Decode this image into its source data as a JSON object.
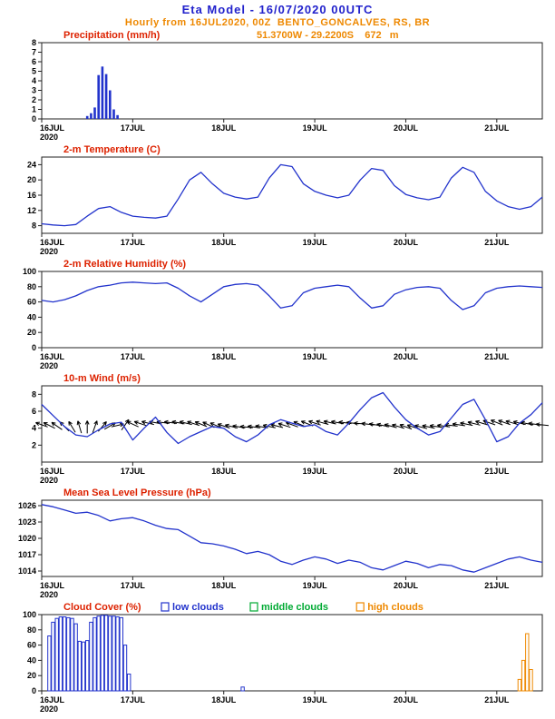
{
  "header": {
    "title": "Eta Model - 16/07/2020 00UTC",
    "subtitle": "Hourly from 16JUL2020, 00Z  BENTO_GONCALVES, RS, BR",
    "coords": "51.3700W - 29.2200S    672   m"
  },
  "colors": {
    "blue": "#2222cc",
    "orange": "#ee8800",
    "red": "#dd2200",
    "green": "#00aa33",
    "line_blue": "#2233cc",
    "black": "#000000"
  },
  "chart_data": {
    "type": "meteogram",
    "x_axis": {
      "tick_labels": [
        "16JUL",
        "17JUL",
        "18JUL",
        "19JUL",
        "20JUL",
        "21JUL"
      ],
      "tick_hours": [
        0,
        24,
        48,
        72,
        96,
        120
      ],
      "year_label": "2020",
      "hours_total": 132
    },
    "panels": [
      {
        "id": "precipitation",
        "type": "bar",
        "title": "Precipitation (mm/h)",
        "ylim": [
          0,
          8
        ],
        "yticks": [
          0,
          1,
          2,
          3,
          4,
          5,
          6,
          7,
          8
        ],
        "bar_color": "#2233cc",
        "bars": [
          [
            12,
            0.3
          ],
          [
            13,
            0.6
          ],
          [
            14,
            1.2
          ],
          [
            15,
            4.6
          ],
          [
            16,
            5.5
          ],
          [
            17,
            4.7
          ],
          [
            18,
            3.0
          ],
          [
            19,
            1.0
          ],
          [
            20,
            0.4
          ]
        ]
      },
      {
        "id": "temperature-2m",
        "type": "line",
        "title": "2-m Temperature (C)",
        "ylim": [
          6,
          26
        ],
        "yticks": [
          8,
          12,
          16,
          20,
          24
        ],
        "line_color": "#2233cc",
        "step_hours": 3,
        "values": [
          8.5,
          8.2,
          8.0,
          8.3,
          10.5,
          12.5,
          13.0,
          11.5,
          10.5,
          10.2,
          10.0,
          10.5,
          15.0,
          20.0,
          22.0,
          19.0,
          16.5,
          15.5,
          15.0,
          15.5,
          20.5,
          24.0,
          23.5,
          19.0,
          17.0,
          16.0,
          15.3,
          16.0,
          20.0,
          23.0,
          22.5,
          18.5,
          16.2,
          15.3,
          14.8,
          15.5,
          20.5,
          23.3,
          22.0,
          17.0,
          14.5,
          13.0,
          12.3,
          13.0,
          15.5
        ]
      },
      {
        "id": "relative-humidity-2m",
        "type": "line",
        "title": "2-m Relative Humidity (%)",
        "ylim": [
          0,
          100
        ],
        "yticks": [
          0,
          20,
          40,
          60,
          80,
          100
        ],
        "line_color": "#2233cc",
        "step_hours": 3,
        "values": [
          62,
          60,
          63,
          68,
          75,
          80,
          82,
          85,
          86,
          85,
          84,
          85,
          78,
          68,
          60,
          70,
          80,
          83,
          84,
          82,
          68,
          52,
          55,
          72,
          78,
          80,
          82,
          80,
          65,
          52,
          55,
          70,
          76,
          79,
          80,
          78,
          62,
          50,
          55,
          72,
          78,
          80,
          81,
          80,
          79
        ]
      },
      {
        "id": "wind-10m",
        "type": "wind",
        "title": "10-m Wind (m/s)",
        "ylim": [
          0,
          9
        ],
        "yticks": [
          2,
          4,
          6,
          8
        ],
        "line_color": "#2233cc",
        "arrow_color": "#000000",
        "arrow_y_value": 4.4,
        "step_hours": 3,
        "values": [
          6.8,
          5.5,
          4.2,
          3.2,
          3.0,
          3.8,
          4.5,
          4.7,
          2.6,
          4.0,
          5.3,
          3.5,
          2.2,
          3.0,
          3.6,
          4.2,
          4.0,
          3.0,
          2.4,
          3.2,
          4.4,
          5.0,
          4.6,
          4.2,
          4.4,
          3.6,
          3.2,
          4.6,
          6.2,
          7.6,
          8.2,
          6.5,
          5.0,
          4.0,
          3.2,
          3.6,
          5.2,
          6.8,
          7.4,
          5.0,
          2.4,
          3.0,
          4.6,
          5.6,
          7.0
        ],
        "arrow_angles_deg": [
          200,
          210,
          225,
          245,
          270,
          300,
          330,
          355,
          205,
          195,
          190,
          186,
          190,
          196,
          202,
          206,
          198,
          192,
          186,
          188,
          192,
          196,
          200,
          204,
          198,
          194,
          190,
          186,
          184,
          188,
          192,
          196,
          200,
          196,
          192,
          188,
          186,
          190,
          194,
          198,
          202,
          198,
          194,
          190,
          186
        ]
      },
      {
        "id": "mslp",
        "type": "line",
        "title": "Mean Sea Level Pressure (hPa)",
        "ylim": [
          1013,
          1027
        ],
        "yticks": [
          1014,
          1017,
          1020,
          1023,
          1026
        ],
        "line_color": "#2233cc",
        "step_hours": 3,
        "values": [
          1026.2,
          1025.8,
          1025.2,
          1024.6,
          1024.8,
          1024.2,
          1023.2,
          1023.6,
          1023.8,
          1023.2,
          1022.4,
          1021.8,
          1021.6,
          1020.4,
          1019.2,
          1019.0,
          1018.6,
          1018.0,
          1017.2,
          1017.6,
          1017.0,
          1015.8,
          1015.2,
          1016.0,
          1016.6,
          1016.2,
          1015.4,
          1016.0,
          1015.6,
          1014.6,
          1014.2,
          1015.0,
          1015.8,
          1015.4,
          1014.6,
          1015.2,
          1015.0,
          1014.2,
          1013.8,
          1014.6,
          1015.4,
          1016.2,
          1016.6,
          1016.0,
          1015.6
        ]
      },
      {
        "id": "cloud-cover",
        "type": "cloudbar",
        "title": "Cloud Cover (%)",
        "ylim": [
          0,
          100
        ],
        "yticks": [
          0,
          20,
          40,
          60,
          80,
          100
        ],
        "legend": [
          {
            "label": "low clouds",
            "color": "#2233cc"
          },
          {
            "label": "middle clouds",
            "color": "#00aa33"
          },
          {
            "label": "high clouds",
            "color": "#ee8800"
          }
        ],
        "series": [
          {
            "name": "low clouds",
            "color": "#2233cc",
            "bars": [
              [
                2,
                72
              ],
              [
                3,
                90
              ],
              [
                4,
                95
              ],
              [
                5,
                97
              ],
              [
                6,
                97
              ],
              [
                7,
                96
              ],
              [
                8,
                95
              ],
              [
                9,
                88
              ],
              [
                10,
                65
              ],
              [
                11,
                64
              ],
              [
                12,
                66
              ],
              [
                13,
                90
              ],
              [
                14,
                96
              ],
              [
                15,
                98
              ],
              [
                16,
                99
              ],
              [
                17,
                99
              ],
              [
                18,
                98
              ],
              [
                19,
                98
              ],
              [
                20,
                97
              ],
              [
                21,
                96
              ],
              [
                22,
                60
              ],
              [
                23,
                22
              ],
              [
                53,
                5
              ]
            ]
          },
          {
            "name": "middle clouds",
            "color": "#00aa33",
            "bars": []
          },
          {
            "name": "high clouds",
            "color": "#ee8800",
            "bars": [
              [
                126,
                15
              ],
              [
                127,
                40
              ],
              [
                128,
                75
              ],
              [
                129,
                28
              ]
            ]
          }
        ]
      }
    ]
  }
}
